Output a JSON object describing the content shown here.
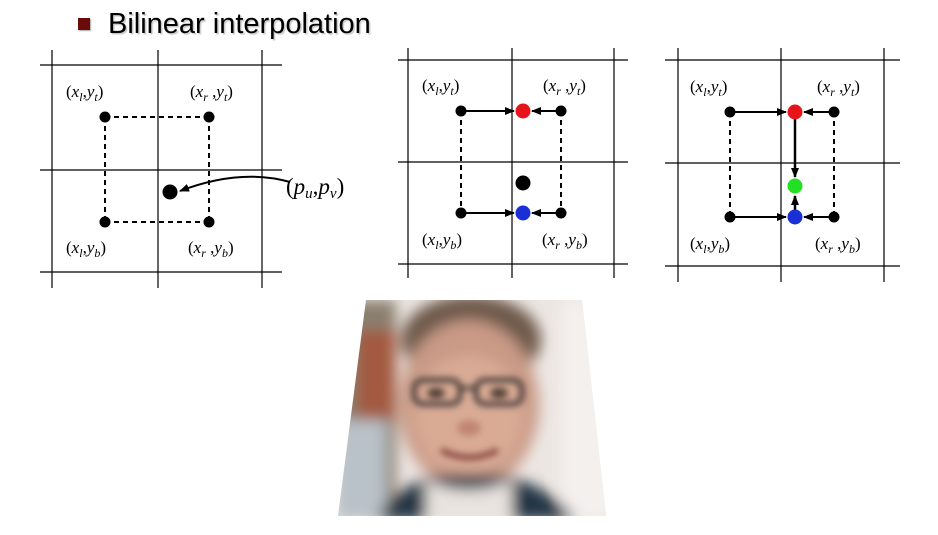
{
  "title": "Bilinear interpolation",
  "labels": {
    "lt_x": "x",
    "lt_xs": "l",
    "lt_y": "y",
    "lt_ys": "t",
    "rt_x": "x",
    "rt_xs": "r",
    "rt_y": "y",
    "rt_ys": "t",
    "lb_x": "x",
    "lb_xs": "l",
    "lb_y": "y",
    "lb_ys": "b",
    "rb_x": "x",
    "rb_xs": "r",
    "rb_y": "y",
    "rb_ys": "b",
    "p_u": "p",
    "p_us": "u",
    "p_v": "p",
    "p_vs": "v"
  },
  "colors": {
    "top_interp": "#e8141c",
    "bottom_interp": "#1a2fd6",
    "final_interp": "#22e022",
    "title_bullet": "#6b0a0a"
  }
}
